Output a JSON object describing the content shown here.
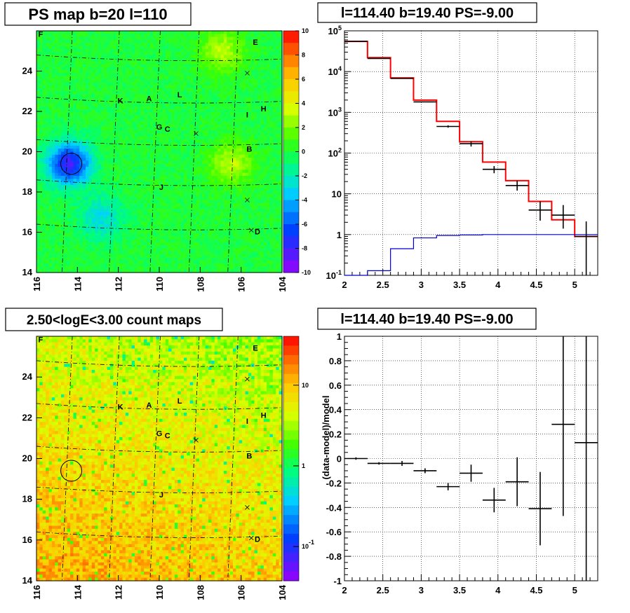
{
  "chart_data": [
    {
      "type": "heatmap",
      "title": "PS map b=20 l=110",
      "xlim": [
        116,
        104
      ],
      "ylim": [
        14,
        26
      ],
      "xticks": [
        "116",
        "114",
        "112",
        "110",
        "108",
        "106",
        "104"
      ],
      "yticks": [
        "14",
        "16",
        "18",
        "20",
        "22",
        "24"
      ],
      "colorbar": {
        "min": -10,
        "max": 10,
        "ticks": [
          "10",
          "8",
          "6",
          "4",
          "2",
          "0",
          "-2",
          "-4",
          "-6",
          "-8",
          "-10"
        ]
      },
      "grid": "dashed galactic/equatorial graticule",
      "background_value": 0,
      "hotspots": [
        {
          "l": 114.4,
          "b": 19.4,
          "value": -8
        },
        {
          "l": 112.8,
          "b": 16.7,
          "value": -3
        },
        {
          "l": 106.5,
          "b": 19.4,
          "value": 3
        },
        {
          "l": 106.9,
          "b": 25.0,
          "value": 3
        }
      ],
      "sources": [
        {
          "name": "A",
          "l": 110.5,
          "b": 22.6
        },
        {
          "name": "B",
          "l": 105.6,
          "b": 20.1
        },
        {
          "name": "C",
          "l": 109.6,
          "b": 21.1
        },
        {
          "name": "D",
          "l": 105.2,
          "b": 16.0
        },
        {
          "name": "E",
          "l": 105.3,
          "b": 25.4
        },
        {
          "name": "F",
          "l": 115.8,
          "b": 25.8
        },
        {
          "name": "G",
          "l": 110.0,
          "b": 21.2
        },
        {
          "name": "H",
          "l": 104.9,
          "b": 22.1
        },
        {
          "name": "I",
          "l": 105.7,
          "b": 21.8
        },
        {
          "name": "J",
          "l": 109.9,
          "b": 18.2
        },
        {
          "name": "K",
          "l": 111.9,
          "b": 22.5
        },
        {
          "name": "L",
          "l": 109.0,
          "b": 22.8
        }
      ],
      "crosses": [
        {
          "l": 105.7,
          "b": 23.9
        },
        {
          "l": 108.2,
          "b": 20.9
        },
        {
          "l": 105.7,
          "b": 17.6
        },
        {
          "l": 105.5,
          "b": 16.1
        }
      ],
      "circle": {
        "l": 114.3,
        "b": 19.4
      }
    },
    {
      "type": "line",
      "title": "l=114.40 b=19.40 PS=-9.00",
      "xlim": [
        2,
        5.3
      ],
      "ylim": [
        0.1,
        100000
      ],
      "yscale": "log",
      "xticks": [
        "2",
        "2.5",
        "3",
        "3.5",
        "4",
        "4.5",
        "5"
      ],
      "yticks": [
        "10^-1",
        "1",
        "10",
        "10^2",
        "10^3",
        "10^4",
        "10^5"
      ],
      "grid": true,
      "bin_edges": [
        2.0,
        2.3,
        2.6,
        2.9,
        3.2,
        3.5,
        3.8,
        4.1,
        4.4,
        4.7,
        5.0,
        5.3
      ],
      "series": [
        {
          "color": "#ff0000",
          "values": [
            55000,
            22000,
            7000,
            2000,
            600,
            190,
            60,
            21,
            6.5,
            2.3,
            0.9
          ]
        },
        {
          "color": "#0000cc",
          "values": [
            0.1,
            0.13,
            0.45,
            0.83,
            0.95,
            0.98,
            1.0,
            1.0,
            1.0,
            1.0,
            1.0
          ]
        },
        {
          "color": "#000000",
          "x": [
            2.15,
            2.45,
            2.75,
            3.05,
            3.35,
            3.65,
            3.95,
            4.25,
            4.55,
            4.85,
            5.15
          ],
          "values": [
            55000,
            21000,
            6800,
            1800,
            450,
            170,
            40,
            16,
            4,
            3,
            0.9
          ],
          "err_low": [
            0,
            0,
            0,
            0,
            30,
            25,
            8,
            4,
            1.8,
            1.6,
            0.88
          ],
          "err_high": [
            0,
            0,
            0,
            0,
            30,
            25,
            8,
            5,
            2.5,
            2.3,
            1.2
          ]
        }
      ]
    },
    {
      "type": "heatmap",
      "title": "2.50<logE<3.00 count maps",
      "xlim": [
        116,
        104
      ],
      "ylim": [
        14,
        26
      ],
      "xticks": [
        "116",
        "114",
        "112",
        "110",
        "108",
        "106",
        "104"
      ],
      "yticks": [
        "14",
        "16",
        "18",
        "20",
        "22",
        "24"
      ],
      "colorbar": {
        "scale": "log",
        "ticks": [
          "10",
          "1",
          "10^-1"
        ]
      },
      "grid": "dashed galactic/equatorial graticule",
      "gradient": "counts increase towards lower b and higher l",
      "sources": [
        {
          "name": "A",
          "l": 110.5,
          "b": 22.6
        },
        {
          "name": "B",
          "l": 105.6,
          "b": 20.1
        },
        {
          "name": "C",
          "l": 109.6,
          "b": 21.1
        },
        {
          "name": "D",
          "l": 105.2,
          "b": 16.0
        },
        {
          "name": "E",
          "l": 105.3,
          "b": 25.4
        },
        {
          "name": "F",
          "l": 115.8,
          "b": 25.8
        },
        {
          "name": "G",
          "l": 110.0,
          "b": 21.2
        },
        {
          "name": "H",
          "l": 104.9,
          "b": 22.1
        },
        {
          "name": "I",
          "l": 105.7,
          "b": 21.8
        },
        {
          "name": "J",
          "l": 109.9,
          "b": 18.2
        },
        {
          "name": "K",
          "l": 111.9,
          "b": 22.5
        },
        {
          "name": "L",
          "l": 109.0,
          "b": 22.8
        }
      ],
      "crosses": [
        {
          "l": 105.7,
          "b": 23.9
        },
        {
          "l": 108.2,
          "b": 20.9
        },
        {
          "l": 105.7,
          "b": 17.6
        },
        {
          "l": 105.5,
          "b": 16.1
        }
      ],
      "circle": {
        "l": 114.3,
        "b": 19.4
      }
    },
    {
      "type": "scatter",
      "title": "l=114.40 b=19.40 PS=-9.00",
      "ylabel": "(data-model)/model",
      "xlim": [
        2,
        5.3
      ],
      "ylim": [
        -1,
        1
      ],
      "xticks": [
        "2",
        "2.5",
        "3",
        "3.5",
        "4",
        "4.5",
        "5"
      ],
      "yticks": [
        "1",
        "0.8",
        "0.6",
        "0.4",
        "0.2",
        "0",
        "-0.2",
        "-0.4",
        "-0.6",
        "-0.8",
        "-1"
      ],
      "grid": true,
      "bin_width": 0.3,
      "x": [
        2.15,
        2.45,
        2.75,
        3.05,
        3.35,
        3.65,
        3.95,
        4.25,
        4.55,
        4.85,
        5.15
      ],
      "values": [
        0.0,
        -0.04,
        -0.04,
        -0.1,
        -0.23,
        -0.12,
        -0.34,
        -0.19,
        -0.41,
        0.28,
        0.13
      ],
      "err": [
        0.01,
        0.01,
        0.02,
        0.02,
        0.03,
        0.07,
        0.1,
        0.2,
        0.3,
        0.75,
        1.4
      ]
    }
  ]
}
